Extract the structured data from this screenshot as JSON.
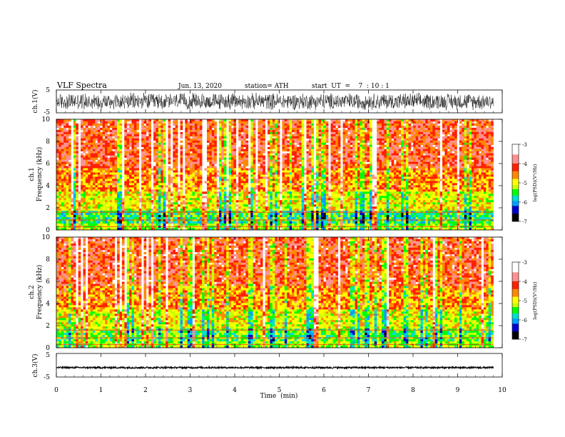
{
  "header": {
    "title": "VLF  Spectra",
    "date": "Jun. 13, 2020",
    "station": "station= ATH",
    "start": "start  UT  =    7  : 10 : 1"
  },
  "chart_data": [
    {
      "type": "line",
      "name": "ch1-waveform",
      "ylabel": "ch.1(V)",
      "ylim": [
        -5,
        5
      ],
      "yticks": [
        "5",
        "-5"
      ],
      "xlim": [
        0,
        10
      ],
      "data_extent_min": 9.8,
      "amplitude_V": 4.0
    },
    {
      "type": "heatmap",
      "name": "ch1-spectrogram",
      "ylabel": "ch.1\nFrequency  (kHz)",
      "ylim": [
        0,
        10
      ],
      "yticks": [
        "0",
        "2",
        "4",
        "6",
        "8",
        "10"
      ],
      "xlim": [
        0,
        10
      ],
      "data_extent_min": 9.8,
      "colorbar": {
        "label": "log(PSD)(V²/Hz)",
        "range": [
          -7,
          -3
        ],
        "ticks": [
          "-3",
          "-4",
          "-5",
          "-6",
          "-7"
        ]
      }
    },
    {
      "type": "heatmap",
      "name": "ch2-spectrogram",
      "ylabel": "ch.2\nFrequency  (kHz)",
      "ylim": [
        0,
        10
      ],
      "yticks": [
        "0",
        "2",
        "4",
        "6",
        "8",
        "10"
      ],
      "xlim": [
        0,
        10
      ],
      "data_extent_min": 9.8,
      "colorbar": {
        "label": "log(PSD)(V²/Hz)",
        "range": [
          -7,
          -3
        ],
        "ticks": [
          "-3",
          "-4",
          "-5",
          "-6",
          "-7"
        ]
      }
    },
    {
      "type": "line",
      "name": "ch3-waveform",
      "ylabel": "ch.3(V)",
      "ylim": [
        -5,
        5
      ],
      "yticks": [
        "5",
        "-5"
      ],
      "xlim": [
        0,
        10
      ],
      "data_extent_min": 9.8,
      "baseline_V": -1.0,
      "amplitude_V": 0.35,
      "xlabel": "Time  (min)",
      "xticks": [
        "0",
        "1",
        "2",
        "3",
        "4",
        "5",
        "6",
        "7",
        "8",
        "9",
        "10"
      ]
    }
  ],
  "colors": {
    "scale": [
      "#000000",
      "#0000cc",
      "#00a0ff",
      "#00e0d0",
      "#00ff00",
      "#c8ff00",
      "#ffff00",
      "#ff8800",
      "#ff2000",
      "#ff9090",
      "#ffffff"
    ]
  }
}
